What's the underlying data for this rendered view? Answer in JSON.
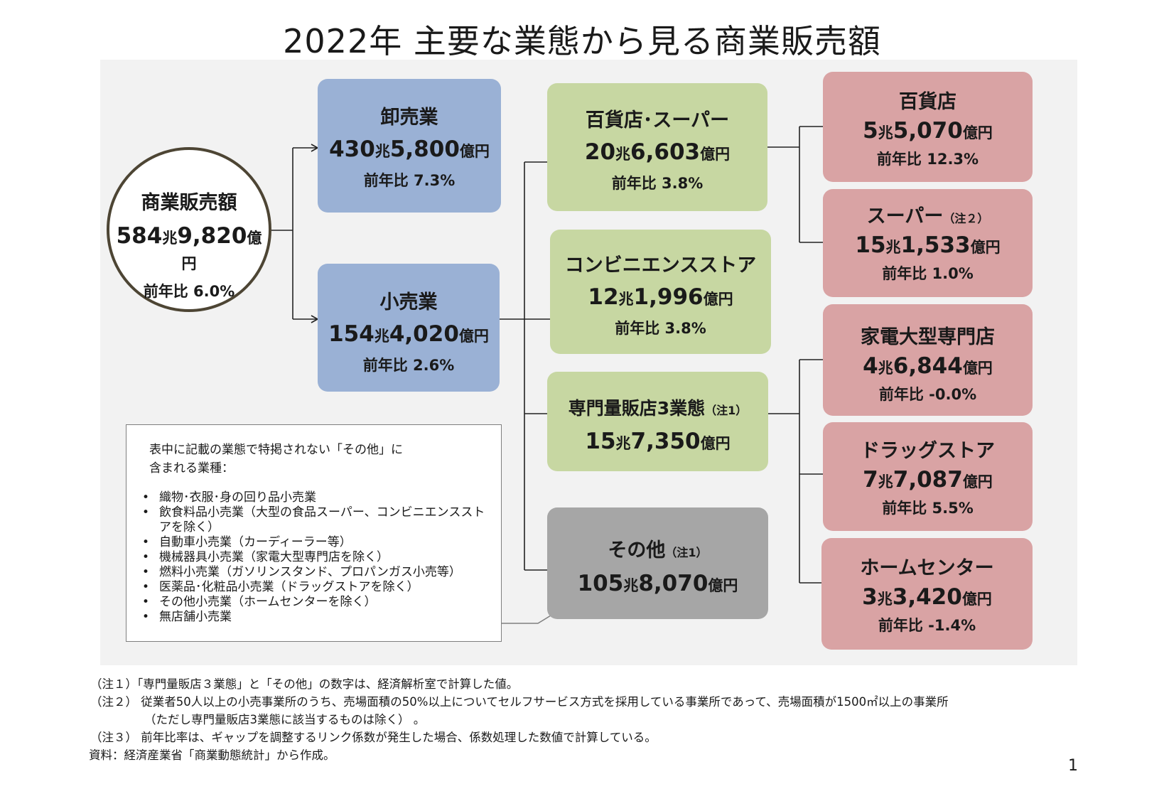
{
  "title": "2022年 主要な業態から見る商業販売額",
  "total": {
    "name": "商業販売額",
    "amount_num": "584",
    "amount_cho": "兆",
    "amount_num2": "9,820",
    "amount_oku": "億円",
    "ratio": "前年比 6.0%"
  },
  "wholesale": {
    "name": "卸売業",
    "amount_num": "430",
    "amount_cho": "兆",
    "amount_num2": "5,800",
    "amount_oku": "億円",
    "ratio": "前年比 7.3%"
  },
  "retail": {
    "name": "小売業",
    "amount_num": "154",
    "amount_cho": "兆",
    "amount_num2": "4,020",
    "amount_oku": "億円",
    "ratio": "前年比 2.6%"
  },
  "dept_super": {
    "name": "百貨店･スーパー",
    "amount_num": "20",
    "amount_cho": "兆",
    "amount_num2": "6,603",
    "amount_oku": "億円",
    "ratio": "前年比 3.8%"
  },
  "convenience": {
    "name": "コンビニエンスストア",
    "amount_num": "12",
    "amount_cho": "兆",
    "amount_num2": "1,996",
    "amount_oku": "億円",
    "ratio": "前年比 3.8%"
  },
  "specialty3": {
    "name": "専門量販店3業態",
    "note": "（注1）",
    "amount_num": "15",
    "amount_cho": "兆",
    "amount_num2": "7,350",
    "amount_oku": "億円"
  },
  "other": {
    "name": "その他",
    "note": "（注1）",
    "amount_num": "105",
    "amount_cho": "兆",
    "amount_num2": "8,070",
    "amount_oku": "億円"
  },
  "department": {
    "name": "百貨店",
    "amount_num": "5",
    "amount_cho": "兆",
    "amount_num2": "5,070",
    "amount_oku": "億円",
    "ratio": "前年比 12.3%"
  },
  "supermarket": {
    "name": "スーパー",
    "note": "（注２）",
    "amount_num": "15",
    "amount_cho": "兆",
    "amount_num2": "1,533",
    "amount_oku": "億円",
    "ratio": "前年比 1.0%"
  },
  "electronics": {
    "name": "家電大型専門店",
    "amount_num": "4",
    "amount_cho": "兆",
    "amount_num2": "6,844",
    "amount_oku": "億円",
    "ratio": "前年比 -0.0%"
  },
  "drugstore": {
    "name": "ドラッグストア",
    "amount_num": "7",
    "amount_cho": "兆",
    "amount_num2": "7,087",
    "amount_oku": "億円",
    "ratio": "前年比 5.5%"
  },
  "homecenter": {
    "name": "ホームセンター",
    "amount_num": "3",
    "amount_cho": "兆",
    "amount_num2": "3,420",
    "amount_oku": "億円",
    "ratio": "前年比 -1.4%"
  },
  "legend": {
    "intro_line1": "表中に記載の業態で特掲されない「その他」に",
    "intro_line2": "含まれる業種：",
    "items": [
      "織物･衣服･身の回り品小売業",
      "飲食料品小売業（大型の食品スーパー、コンビニエンスストアを除く）",
      "自動車小売業（カーディーラー等）",
      "機械器具小売業（家電大型専門店を除く）",
      "燃料小売業（ガソリンスタンド、プロパンガス小売等）",
      "医薬品･化粧品小売業（ドラッグストアを除く）",
      "その他小売業（ホームセンターを除く）",
      "無店舗小売業"
    ]
  },
  "footnotes": {
    "note1": "（注１）「専門量販店３業態」と「その他」の数字は、経済解析室で計算した値。",
    "note2": "（注２） 従業者50人以上の小売事業所のうち、売場面積の50%以上についてセルフサービス方式を採用している事業所であって、売場面積が1500㎡以上の事業所",
    "note2b": "（ただし専門量販店3業態に該当するものは除く） 。",
    "note3": "（注３） 前年比率は、ギャップを調整するリンク係数が発生した場合、係数処理した数値で計算している。",
    "source": "資料：経済産業省「商業動態統計」から作成。"
  },
  "page_number": "1",
  "colors": {
    "wholesale_retail": "#9ab1d5",
    "mid_tier": "#c7d7a2",
    "detail": "#d9a3a4",
    "other": "#a6a6a6",
    "circle_border": "#4d4534"
  }
}
